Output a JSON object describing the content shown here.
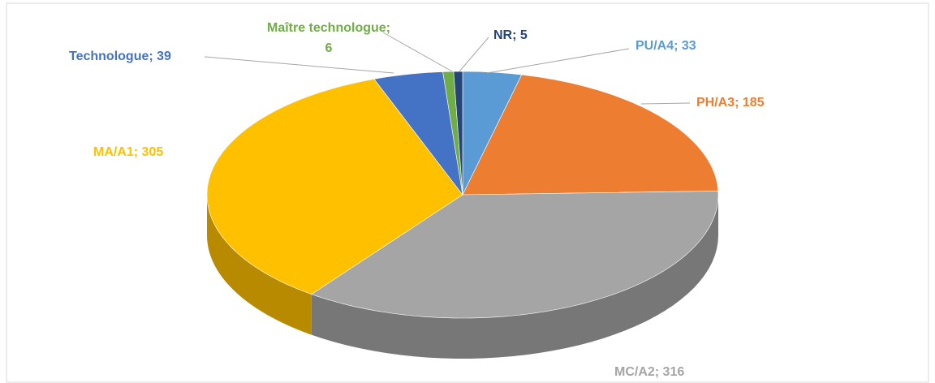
{
  "chart_data": {
    "type": "pie3d",
    "categories": [
      "PU/A4",
      "PH/A3",
      "MC/A2",
      "MA/A1",
      "Technologue",
      "Maître technologue",
      "NR"
    ],
    "values": [
      33,
      185,
      316,
      305,
      39,
      6,
      5
    ],
    "value_labels": [
      "PU/A4; 33",
      "PH/A3; 185",
      "MC/A2; 316",
      "MA/A1; 305",
      "Technologue; 39",
      "Maître technologue;\n6",
      "NR; 5"
    ],
    "colors": [
      "#5b9bd5",
      "#ed7d31",
      "#a5a5a5",
      "#ffc000",
      "#4472c4",
      "#70ad47",
      "#264478"
    ]
  }
}
